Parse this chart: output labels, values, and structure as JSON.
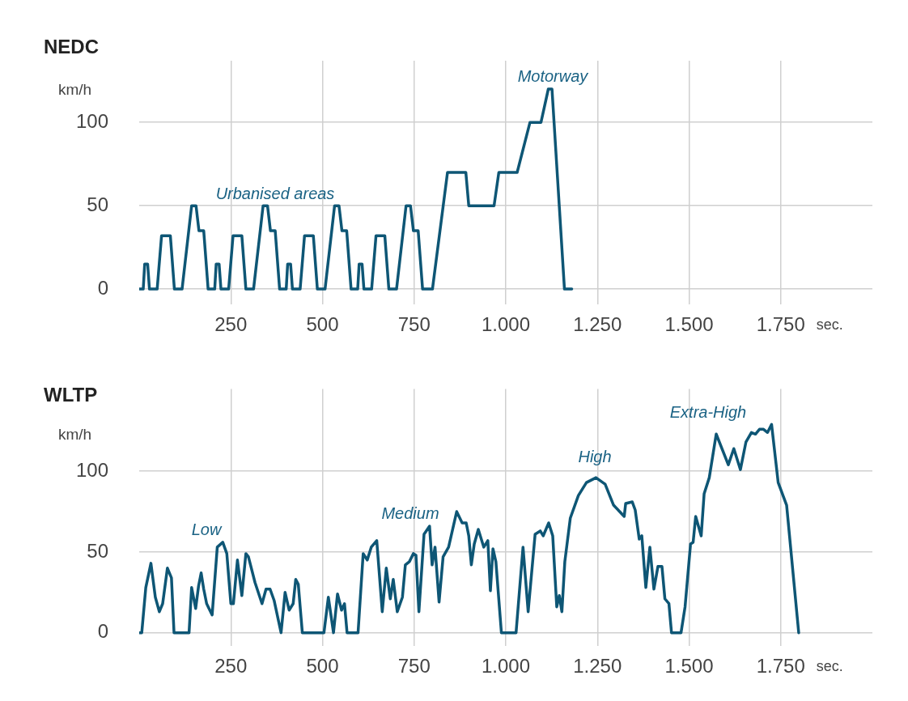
{
  "chart_data": [
    {
      "type": "line",
      "title": "NEDC",
      "ylabel": "km/h",
      "xlabel": "sec.",
      "marker": "none",
      "grid": true,
      "xlim": [
        0,
        2000
      ],
      "ylim": [
        -9,
        137
      ],
      "xticks": [
        250,
        500,
        750,
        {
          "value": 1000,
          "label": "1.000"
        },
        {
          "value": 1250,
          "label": "1.250"
        },
        {
          "value": 1500,
          "label": "1.500"
        },
        {
          "value": 1750,
          "label": "1.750"
        }
      ],
      "yticks": [
        0,
        50,
        100
      ],
      "x": [
        0,
        11,
        15,
        23,
        28,
        49,
        61,
        85,
        96,
        117,
        143,
        155,
        163,
        176,
        188,
        195,
        206,
        210,
        218,
        223,
        244,
        256,
        280,
        291,
        312,
        338,
        350,
        358,
        371,
        383,
        390,
        401,
        405,
        413,
        418,
        439,
        451,
        475,
        486,
        507,
        533,
        545,
        553,
        566,
        578,
        585,
        596,
        600,
        608,
        613,
        634,
        646,
        670,
        681,
        702,
        728,
        740,
        748,
        761,
        773,
        780,
        800,
        841,
        891,
        899,
        968,
        981,
        1031,
        1066,
        1096,
        1116,
        1126,
        1160,
        1180
      ],
      "series": [
        {
          "color": "#0e5675",
          "values": [
            0,
            0,
            15,
            15,
            0,
            0,
            32,
            32,
            0,
            0,
            50,
            50,
            35,
            35,
            0,
            0,
            0,
            15,
            15,
            0,
            0,
            32,
            32,
            0,
            0,
            50,
            50,
            35,
            35,
            0,
            0,
            0,
            15,
            15,
            0,
            0,
            32,
            32,
            0,
            0,
            50,
            50,
            35,
            35,
            0,
            0,
            0,
            15,
            15,
            0,
            0,
            32,
            32,
            0,
            0,
            50,
            50,
            35,
            35,
            0,
            0,
            0,
            70,
            70,
            50,
            50,
            70,
            70,
            100,
            100,
            120,
            120,
            0,
            0
          ]
        }
      ],
      "annotations": [
        "Urbanised areas",
        "Motorway"
      ]
    },
    {
      "type": "line",
      "title": "WLTP",
      "ylabel": "km/h",
      "xlabel": "sec.",
      "marker": "none",
      "grid": true,
      "xlim": [
        0,
        2000
      ],
      "ylim": [
        -8,
        151
      ],
      "xticks": [
        250,
        500,
        750,
        {
          "value": 1000,
          "label": "1.000"
        },
        {
          "value": 1250,
          "label": "1.250"
        },
        {
          "value": 1500,
          "label": "1.500"
        },
        {
          "value": 1750,
          "label": "1.750"
        }
      ],
      "yticks": [
        0,
        50,
        100
      ],
      "x": [
        0,
        7,
        18,
        32,
        44,
        55,
        64,
        77,
        88,
        95,
        136,
        143,
        154,
        162,
        169,
        176,
        184,
        199,
        213,
        228,
        239,
        250,
        257,
        268,
        280,
        291,
        298,
        316,
        335,
        346,
        357,
        368,
        387,
        398,
        409,
        420,
        427,
        434,
        445,
        504,
        516,
        530,
        541,
        552,
        560,
        567,
        597,
        611,
        622,
        633,
        648,
        663,
        674,
        685,
        693,
        704,
        718,
        726,
        737,
        748,
        755,
        763,
        777,
        792,
        799,
        807,
        818,
        829,
        844,
        866,
        881,
        892,
        899,
        906,
        914,
        925,
        940,
        951,
        958,
        965,
        973,
        988,
        1028,
        1047,
        1061,
        1080,
        1094,
        1102,
        1117,
        1128,
        1139,
        1146,
        1153,
        1161,
        1176,
        1198,
        1220,
        1246,
        1271,
        1294,
        1323,
        1327,
        1345,
        1353,
        1364,
        1371,
        1382,
        1393,
        1404,
        1415,
        1426,
        1434,
        1445,
        1452,
        1478,
        1489,
        1504,
        1511,
        1518,
        1533,
        1541,
        1555,
        1574,
        1607,
        1622,
        1640,
        1655,
        1670,
        1681,
        1692,
        1703,
        1714,
        1725,
        1743,
        1766,
        1799
      ],
      "series": [
        {
          "color": "#0e5675",
          "values": [
            0,
            0,
            28,
            43,
            22,
            13,
            18,
            40,
            34,
            0,
            0,
            28,
            15,
            29,
            37,
            27,
            18,
            11,
            53,
            56,
            49,
            18,
            18,
            45,
            23,
            49,
            47,
            31,
            18,
            27,
            27,
            20,
            0,
            25,
            14,
            18,
            33,
            30,
            0,
            0,
            22,
            0,
            24,
            14,
            18,
            0,
            0,
            49,
            45,
            53,
            57,
            13,
            40,
            21,
            33,
            13,
            22,
            42,
            44,
            49,
            48,
            13,
            61,
            66,
            42,
            53,
            19,
            47,
            53,
            75,
            68,
            68,
            60,
            42,
            55,
            64,
            53,
            57,
            26,
            52,
            44,
            0,
            0,
            53,
            13,
            61,
            63,
            60,
            68,
            60,
            16,
            23,
            13,
            44,
            71,
            85,
            93,
            96,
            92,
            79,
            72,
            80,
            81,
            76,
            58,
            60,
            28,
            53,
            27,
            41,
            41,
            21,
            18,
            0,
            0,
            16,
            55,
            56,
            72,
            60,
            86,
            96,
            123,
            104,
            114,
            101,
            118,
            124,
            123,
            126,
            126,
            124,
            129,
            93,
            79,
            0
          ]
        }
      ],
      "annotations": [
        "Low",
        "Medium",
        "High",
        "Extra-High"
      ]
    }
  ]
}
